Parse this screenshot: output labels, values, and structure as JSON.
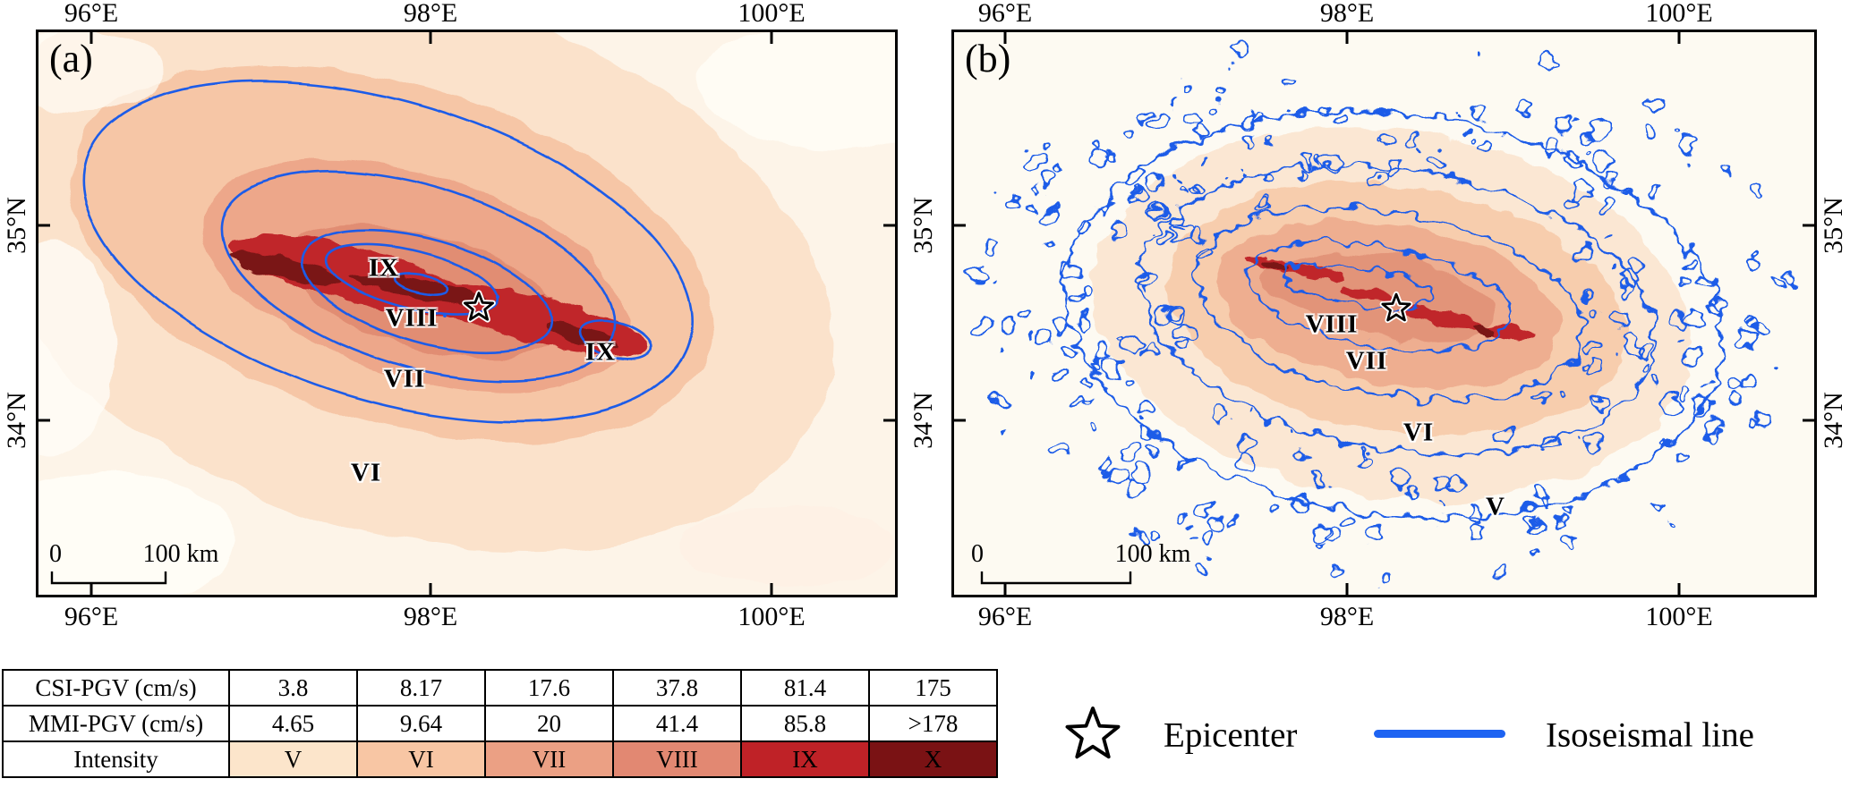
{
  "colors": {
    "contour_blue": "#1e5be8",
    "legend_line_blue": "#1d63f2",
    "intensity": {
      "V": "#fce5cb",
      "VI": "#f8c6a4",
      "VII": "#eba084",
      "VIII": "#e28872",
      "IX": "#bf2227",
      "X": "#7a1214"
    }
  },
  "panel_a": {
    "tag": "(a)",
    "x_ticks": [
      "96°E",
      "98°E",
      "100°E"
    ],
    "y_ticks": [
      "35°N",
      "34°N"
    ],
    "contour_labels": {
      "ix_west": "IX",
      "viii": "VIII",
      "ix_east": "IX",
      "vii": "VII",
      "vi": "VI"
    },
    "scale": {
      "zero": "0",
      "hundred": "100 km"
    }
  },
  "panel_b": {
    "tag": "(b)",
    "x_ticks": [
      "96°E",
      "98°E",
      "100°E"
    ],
    "y_ticks_left": [
      "35°N",
      "34°N"
    ],
    "y_ticks_right": [
      "35°N",
      "34°N"
    ],
    "contour_labels": {
      "viii": "VIII",
      "vii": "VII",
      "vi": "VI",
      "v": "V"
    },
    "scale": {
      "zero": "0",
      "hundred": "100 km"
    }
  },
  "table": {
    "rows": [
      {
        "header": "CSI-PGV (cm/s)",
        "values": [
          "3.8",
          "8.17",
          "17.6",
          "37.8",
          "81.4",
          "175"
        ]
      },
      {
        "header": "MMI-PGV (cm/s)",
        "values": [
          "4.65",
          "9.64",
          "20",
          "41.4",
          "85.8",
          ">178"
        ]
      },
      {
        "header": "Intensity",
        "values": [
          "V",
          "VI",
          "VII",
          "VIII",
          "IX",
          "X"
        ]
      }
    ]
  },
  "legend": {
    "epicenter": "Epicenter",
    "isoseismal": "Isoseismal line"
  }
}
